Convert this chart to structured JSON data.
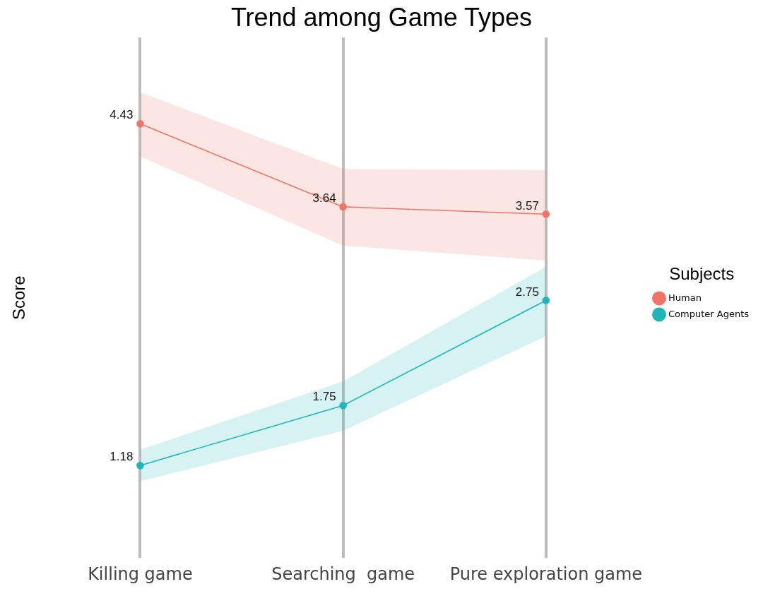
{
  "chart_data": {
    "type": "line",
    "title": "Trend among Game Types",
    "ylabel": "Score",
    "legend_title": "Subjects",
    "categories": [
      "Killing game",
      "Searching  game",
      "Pure exploration game"
    ],
    "series": [
      {
        "name": "Human",
        "color": "#f07468",
        "values": [
          4.43,
          3.64,
          3.57
        ],
        "lower": [
          4.12,
          3.27,
          3.13
        ],
        "upper": [
          4.73,
          4.0,
          3.99
        ]
      },
      {
        "name": "Computer Agents",
        "color": "#20b5b8",
        "values": [
          1.18,
          1.75,
          2.75
        ],
        "lower": [
          1.03,
          1.51,
          2.41
        ],
        "upper": [
          1.33,
          1.98,
          3.07
        ]
      }
    ],
    "ylim": [
      0.3,
      5.25
    ],
    "tick_labels": "x",
    "grid": "x",
    "legend": "right",
    "marker": "circle",
    "line_style": "solid",
    "data_labels": true
  }
}
